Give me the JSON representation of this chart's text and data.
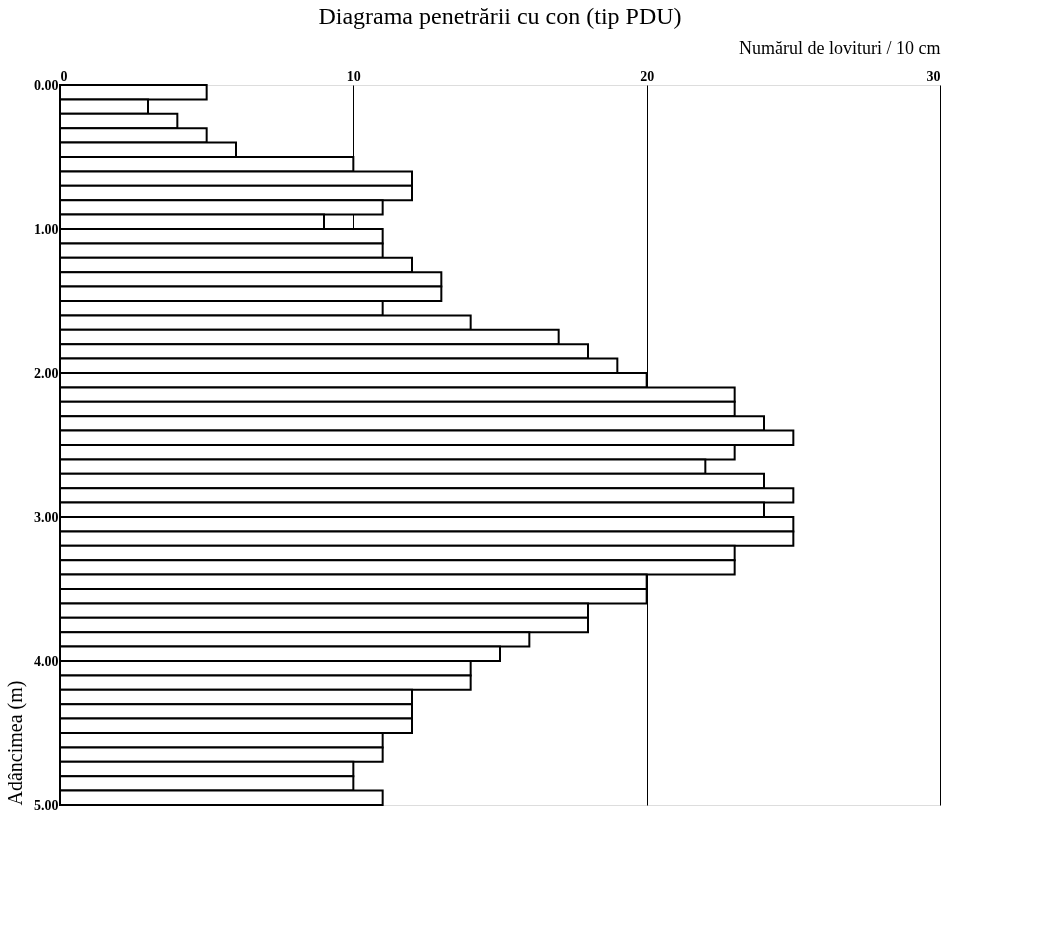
{
  "chart_data": {
    "type": "histogram",
    "orientation": "horizontal",
    "title": "Diagrama penetrării cu con (tip PDU)",
    "xlabel": "Numărul de lovituri / 10 cm",
    "ylabel": "Adâncimea (m)",
    "bins": [
      0.0,
      0.1,
      0.2,
      0.3,
      0.4,
      0.5,
      0.6,
      0.7,
      0.8,
      0.9,
      1.0,
      1.1,
      1.2,
      1.3,
      1.4,
      1.5,
      1.6,
      1.7,
      1.8,
      1.9,
      2.0,
      2.1,
      2.2,
      2.3,
      2.4,
      2.5,
      2.6,
      2.7,
      2.8,
      2.9,
      3.0,
      3.1,
      3.2,
      3.3,
      3.4,
      3.5,
      3.6,
      3.7,
      3.8,
      3.9,
      4.0,
      4.1,
      4.2,
      4.3,
      4.4,
      4.5,
      4.6,
      4.7,
      4.8,
      4.9,
      5.0
    ],
    "values": [
      5,
      3,
      4,
      5,
      6,
      10,
      12,
      12,
      11,
      9,
      11,
      11,
      12,
      13,
      13,
      11,
      14,
      17,
      18,
      19,
      20,
      23,
      23,
      24,
      25,
      23,
      22,
      24,
      25,
      24,
      25,
      25,
      23,
      23,
      20,
      20,
      18,
      18,
      16,
      15,
      14,
      14,
      12,
      12,
      12,
      11,
      11,
      10,
      10,
      11
    ],
    "color": "#ffffff",
    "xlim": [
      0,
      30
    ],
    "xticks": [
      0,
      10,
      20,
      30
    ],
    "ylim": [
      5,
      0
    ],
    "yticks": [
      {
        "value": 0,
        "label": "0.00"
      },
      {
        "value": 1,
        "label": "1.00"
      },
      {
        "value": 2,
        "label": "2.00"
      },
      {
        "value": 3,
        "label": "3.00"
      },
      {
        "value": 4,
        "label": "4.00"
      },
      {
        "value": 5,
        "label": "5.00"
      }
    ],
    "grid": "x"
  }
}
